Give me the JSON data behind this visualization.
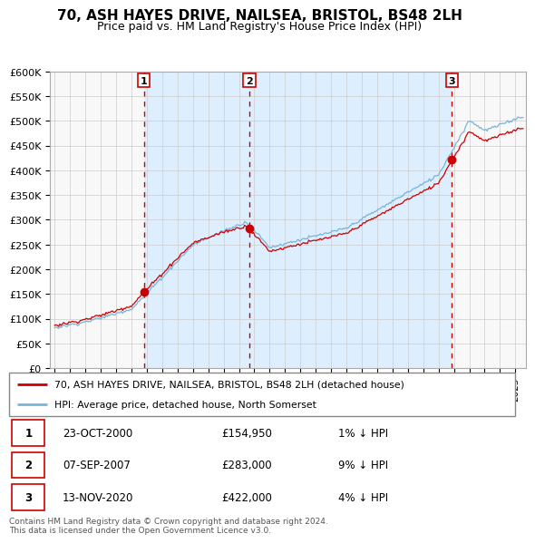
{
  "title": "70, ASH HAYES DRIVE, NAILSEA, BRISTOL, BS48 2LH",
  "subtitle": "Price paid vs. HM Land Registry's House Price Index (HPI)",
  "ylim": [
    0,
    600000
  ],
  "yticks": [
    0,
    50000,
    100000,
    150000,
    200000,
    250000,
    300000,
    350000,
    400000,
    450000,
    500000,
    550000,
    600000
  ],
  "ytick_labels": [
    "£0",
    "£50K",
    "£100K",
    "£150K",
    "£200K",
    "£250K",
    "£300K",
    "£350K",
    "£400K",
    "£450K",
    "£500K",
    "£550K",
    "£600K"
  ],
  "hpi_color": "#7ab4d8",
  "price_color": "#cc0000",
  "vline_color": "#cc0000",
  "shade_color": "#ddeeff",
  "sale_dates_decimal": [
    2000.81,
    2007.68,
    2020.87
  ],
  "sale_prices": [
    154950,
    283000,
    422000
  ],
  "sale_labels": [
    "1",
    "2",
    "3"
  ],
  "xlim_start": 1994.7,
  "xlim_end": 2025.7,
  "legend_line1": "70, ASH HAYES DRIVE, NAILSEA, BRISTOL, BS48 2LH (detached house)",
  "legend_line2": "HPI: Average price, detached house, North Somerset",
  "table_data": [
    [
      "1",
      "23-OCT-2000",
      "£154,950",
      "1% ↓ HPI"
    ],
    [
      "2",
      "07-SEP-2007",
      "£283,000",
      "9% ↓ HPI"
    ],
    [
      "3",
      "13-NOV-2020",
      "£422,000",
      "4% ↓ HPI"
    ]
  ],
  "footer": "Contains HM Land Registry data © Crown copyright and database right 2024.\nThis data is licensed under the Open Government Licence v3.0.",
  "bg_color": "#ffffff",
  "grid_color": "#cccccc"
}
